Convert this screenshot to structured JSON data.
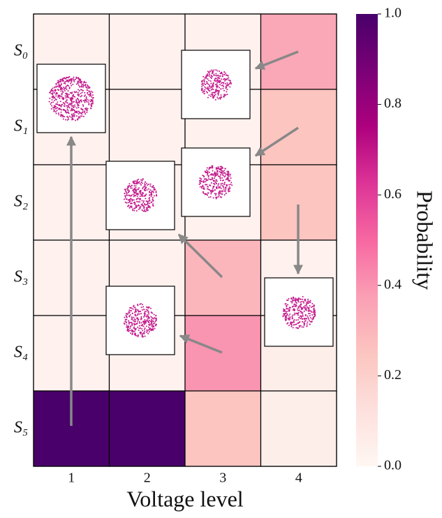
{
  "chart_data": {
    "type": "heatmap",
    "x_label": "Voltage level",
    "categories": [
      "1",
      "2",
      "3",
      "4"
    ],
    "rows": [
      "S₀",
      "S₁",
      "S₂",
      "S₃",
      "S₄",
      "S₅"
    ],
    "values": [
      [
        0.03,
        0.03,
        0.03,
        0.35
      ],
      [
        0.03,
        0.03,
        0.03,
        0.25
      ],
      [
        0.03,
        0.03,
        0.03,
        0.25
      ],
      [
        0.03,
        0.03,
        0.3,
        0.03
      ],
      [
        0.03,
        0.03,
        0.4,
        0.05
      ],
      [
        1.0,
        1.0,
        0.25,
        0.05
      ]
    ],
    "colorbar_label": "Probability",
    "clim": [
      0,
      1
    ],
    "cticks": [
      {
        "value": 0,
        "label": "0.0"
      },
      0.2,
      0.4,
      0.6,
      0.8,
      {
        "value": 1,
        "label": "1.0"
      }
    ],
    "colormap": [
      "#fff7f3",
      "#fde0dd",
      "#fcc5c0",
      "#fa9fb5",
      "#f768a1",
      "#dd3497",
      "#ae017e",
      "#7a0177",
      "#49006a"
    ]
  }
}
